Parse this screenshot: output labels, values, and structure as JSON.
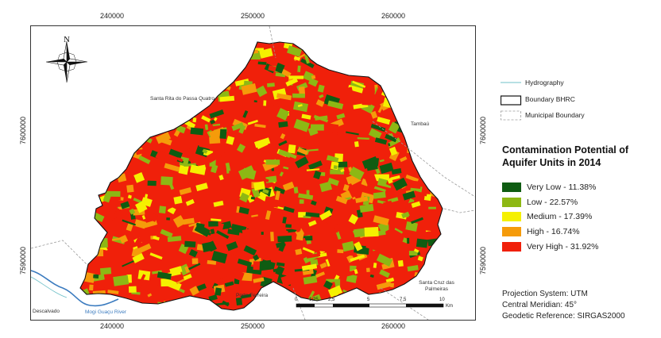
{
  "axes": {
    "x_ticks": [
      "240000",
      "250000",
      "260000"
    ],
    "y_ticks": [
      "7600000",
      "7590000"
    ]
  },
  "north_arrow": {
    "letter": "N",
    "icon": "north-arrow-icon"
  },
  "places": {
    "santa_rita": "Santa Rita do Passa Quatro",
    "tambau": "Tambaú",
    "santa_cruz": "Santa Cruz das Palmeiras",
    "porto_ferreira": "Porto Ferreira",
    "descalvado": "Descalvado",
    "river": "Mogi Guaçu River"
  },
  "legend": {
    "hydrography": "Hydrography",
    "boundary_bhrc": "Boundary BHRC",
    "municipal_boundary": "Municipal Boundary",
    "title": "Contamination Potential of Aquifer Units in 2014",
    "classes": [
      {
        "label": "Very Low - 11.38%",
        "color": "#0f5c12"
      },
      {
        "label": "Low - 22.57%",
        "color": "#8db814"
      },
      {
        "label": "Medium - 17.39%",
        "color": "#f5f000"
      },
      {
        "label": "High - 16.74%",
        "color": "#f59b0a"
      },
      {
        "label": "Very High - 31.92%",
        "color": "#f0200a"
      }
    ]
  },
  "scale_bar": {
    "ticks": [
      "0",
      "1,25",
      "2,5",
      "5",
      "7,5",
      "10"
    ],
    "unit": "Km"
  },
  "projection": {
    "system": "Projection System: UTM",
    "meridian": "Central Meridian: 45°",
    "reference": "Geodetic Reference: SIRGAS2000"
  },
  "colors": {
    "hydrography": "#6fc0c8",
    "river": "#3b7bbf",
    "municipal": "#9a9a9a"
  }
}
